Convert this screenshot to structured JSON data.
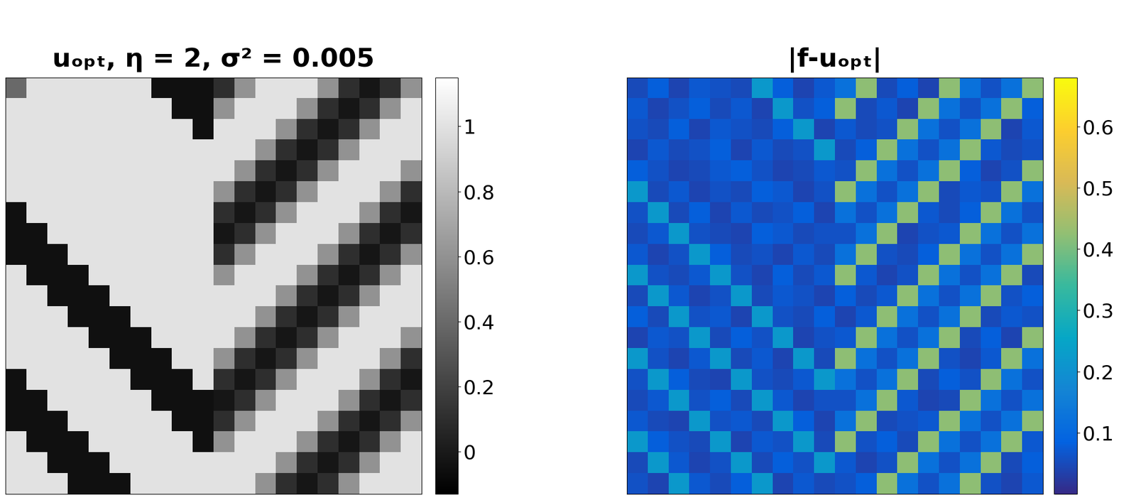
{
  "chart_data": [
    {
      "type": "heatmap",
      "title": "uₒₚₜ, η = 2, σ² = 0.005",
      "color": "gray",
      "tick_labels": false,
      "clim": [
        -0.13,
        1.15
      ],
      "cticks": [
        0,
        0.2,
        0.4,
        0.6,
        0.8,
        1
      ],
      "cells": [
        [
          0.4,
          1,
          1,
          1,
          1,
          1,
          1,
          -0.05,
          -0.05,
          -0.05,
          0.1,
          0.6,
          1,
          1,
          1,
          0.6,
          0.1,
          -0.02,
          0.1,
          0.6
        ],
        [
          1,
          1,
          1,
          1,
          1,
          1,
          1,
          1,
          -0.05,
          -0.05,
          0.6,
          1,
          1,
          1,
          0.6,
          0.1,
          -0.02,
          0.1,
          0.6,
          1
        ],
        [
          1,
          1,
          1,
          1,
          1,
          1,
          1,
          1,
          1,
          -0.05,
          1,
          1,
          1,
          0.6,
          0.1,
          -0.02,
          0.1,
          0.6,
          1,
          1
        ],
        [
          1,
          1,
          1,
          1,
          1,
          1,
          1,
          1,
          1,
          1,
          1,
          1,
          0.6,
          0.1,
          -0.02,
          0.1,
          0.6,
          1,
          1,
          1
        ],
        [
          1,
          1,
          1,
          1,
          1,
          1,
          1,
          1,
          1,
          1,
          1,
          0.6,
          0.1,
          -0.02,
          0.1,
          0.6,
          1,
          1,
          1,
          0.6
        ],
        [
          1,
          1,
          1,
          1,
          1,
          1,
          1,
          1,
          1,
          1,
          0.6,
          0.1,
          -0.02,
          0.1,
          0.6,
          1,
          1,
          1,
          0.6,
          0.1
        ],
        [
          -0.05,
          1,
          1,
          1,
          1,
          1,
          1,
          1,
          1,
          1,
          0.1,
          -0.02,
          0.1,
          0.6,
          1,
          1,
          1,
          0.6,
          0.1,
          -0.02
        ],
        [
          -0.05,
          -0.05,
          1,
          1,
          1,
          1,
          1,
          1,
          1,
          1,
          -0.02,
          0.1,
          0.6,
          1,
          1,
          1,
          0.6,
          0.1,
          -0.02,
          0.1
        ],
        [
          -0.05,
          -0.05,
          -0.05,
          1,
          1,
          1,
          1,
          1,
          1,
          1,
          0.1,
          0.6,
          1,
          1,
          1,
          0.6,
          0.1,
          -0.02,
          0.1,
          0.6
        ],
        [
          1,
          -0.05,
          -0.05,
          -0.05,
          1,
          1,
          1,
          1,
          1,
          1,
          0.6,
          1,
          1,
          1,
          0.6,
          0.1,
          -0.02,
          0.1,
          0.6,
          1
        ],
        [
          1,
          1,
          -0.05,
          -0.05,
          -0.05,
          1,
          1,
          1,
          1,
          1,
          1,
          1,
          1,
          0.6,
          0.1,
          -0.02,
          0.1,
          0.6,
          1,
          1
        ],
        [
          1,
          1,
          1,
          -0.05,
          -0.05,
          -0.05,
          1,
          1,
          1,
          1,
          1,
          1,
          0.6,
          0.1,
          -0.02,
          0.1,
          0.6,
          1,
          1,
          1
        ],
        [
          1,
          1,
          1,
          1,
          -0.05,
          -0.05,
          -0.05,
          1,
          1,
          1,
          1,
          0.6,
          0.1,
          -0.02,
          0.1,
          0.6,
          1,
          1,
          1,
          0.6
        ],
        [
          1,
          1,
          1,
          1,
          1,
          -0.05,
          -0.05,
          -0.05,
          1,
          1,
          0.6,
          0.1,
          -0.02,
          0.1,
          0.6,
          1,
          1,
          1,
          0.6,
          0.1
        ],
        [
          -0.05,
          1,
          1,
          1,
          1,
          1,
          -0.05,
          -0.05,
          -0.05,
          1,
          0.1,
          -0.02,
          0.1,
          0.6,
          1,
          1,
          1,
          0.6,
          0.1,
          -0.02
        ],
        [
          -0.05,
          -0.05,
          1,
          1,
          1,
          1,
          1,
          -0.05,
          -0.05,
          -0.05,
          -0.02,
          0.1,
          0.6,
          1,
          1,
          1,
          0.6,
          0.1,
          -0.02,
          0.1
        ],
        [
          -0.05,
          -0.05,
          -0.05,
          1,
          1,
          1,
          1,
          1,
          -0.05,
          -0.05,
          0.1,
          0.6,
          1,
          1,
          1,
          0.6,
          0.1,
          -0.02,
          0.1,
          0.6
        ],
        [
          1,
          -0.05,
          -0.05,
          -0.05,
          1,
          1,
          1,
          1,
          1,
          -0.05,
          0.6,
          1,
          1,
          1,
          0.6,
          0.1,
          -0.02,
          0.1,
          0.6,
          1
        ],
        [
          1,
          1,
          -0.05,
          -0.05,
          -0.05,
          1,
          1,
          1,
          1,
          1,
          1,
          1,
          1,
          0.6,
          0.1,
          -0.02,
          0.1,
          0.6,
          1,
          1
        ],
        [
          1,
          1,
          1,
          -0.05,
          -0.05,
          -0.05,
          1,
          1,
          1,
          1,
          1,
          1,
          0.6,
          0.1,
          -0.02,
          0.1,
          0.6,
          1,
          1,
          1
        ]
      ]
    },
    {
      "type": "heatmap",
      "title": "|f-uₒₚₜ|",
      "color": "parula",
      "tick_labels": false,
      "clim": [
        0,
        0.68
      ],
      "cticks": [
        0.1,
        0.2,
        0.3,
        0.4,
        0.5,
        0.6
      ],
      "cells": [
        [
          0.05,
          0.08,
          0.04,
          0.07,
          0.06,
          0.05,
          0.22,
          0.08,
          0.04,
          0.07,
          0.12,
          0.42,
          0.05,
          0.08,
          0.04,
          0.42,
          0.12,
          0.06,
          0.12,
          0.42
        ],
        [
          0.07,
          0.04,
          0.06,
          0.08,
          0.05,
          0.07,
          0.04,
          0.22,
          0.06,
          0.08,
          0.42,
          0.05,
          0.07,
          0.04,
          0.42,
          0.12,
          0.06,
          0.12,
          0.42,
          0.08
        ],
        [
          0.06,
          0.05,
          0.08,
          0.04,
          0.07,
          0.06,
          0.05,
          0.08,
          0.22,
          0.04,
          0.07,
          0.05,
          0.06,
          0.42,
          0.12,
          0.06,
          0.12,
          0.42,
          0.04,
          0.07
        ],
        [
          0.04,
          0.07,
          0.05,
          0.06,
          0.08,
          0.04,
          0.07,
          0.05,
          0.06,
          0.22,
          0.05,
          0.08,
          0.42,
          0.12,
          0.06,
          0.12,
          0.42,
          0.07,
          0.05,
          0.06
        ],
        [
          0.08,
          0.06,
          0.04,
          0.05,
          0.07,
          0.08,
          0.06,
          0.04,
          0.05,
          0.07,
          0.06,
          0.42,
          0.12,
          0.06,
          0.12,
          0.42,
          0.08,
          0.04,
          0.06,
          0.42
        ],
        [
          0.22,
          0.05,
          0.07,
          0.04,
          0.06,
          0.05,
          0.08,
          0.07,
          0.04,
          0.06,
          0.42,
          0.12,
          0.06,
          0.12,
          0.42,
          0.05,
          0.07,
          0.06,
          0.42,
          0.12
        ],
        [
          0.06,
          0.22,
          0.05,
          0.08,
          0.04,
          0.07,
          0.05,
          0.06,
          0.08,
          0.04,
          0.12,
          0.06,
          0.12,
          0.42,
          0.07,
          0.05,
          0.08,
          0.42,
          0.12,
          0.06
        ],
        [
          0.05,
          0.07,
          0.22,
          0.06,
          0.05,
          0.04,
          0.08,
          0.07,
          0.05,
          0.06,
          0.06,
          0.12,
          0.42,
          0.04,
          0.06,
          0.07,
          0.42,
          0.12,
          0.06,
          0.12
        ],
        [
          0.07,
          0.04,
          0.06,
          0.22,
          0.08,
          0.05,
          0.06,
          0.04,
          0.07,
          0.05,
          0.12,
          0.42,
          0.06,
          0.05,
          0.08,
          0.42,
          0.12,
          0.06,
          0.12,
          0.42
        ],
        [
          0.22,
          0.06,
          0.05,
          0.07,
          0.22,
          0.06,
          0.04,
          0.08,
          0.05,
          0.07,
          0.42,
          0.07,
          0.04,
          0.06,
          0.42,
          0.12,
          0.06,
          0.12,
          0.42,
          0.05
        ],
        [
          0.05,
          0.22,
          0.07,
          0.04,
          0.06,
          0.22,
          0.05,
          0.07,
          0.06,
          0.04,
          0.08,
          0.05,
          0.07,
          0.42,
          0.12,
          0.06,
          0.12,
          0.42,
          0.06,
          0.08
        ],
        [
          0.08,
          0.05,
          0.22,
          0.06,
          0.07,
          0.04,
          0.22,
          0.06,
          0.05,
          0.08,
          0.04,
          0.07,
          0.42,
          0.12,
          0.06,
          0.12,
          0.42,
          0.05,
          0.07,
          0.06
        ],
        [
          0.04,
          0.07,
          0.06,
          0.22,
          0.05,
          0.08,
          0.06,
          0.22,
          0.04,
          0.06,
          0.07,
          0.42,
          0.12,
          0.06,
          0.12,
          0.42,
          0.05,
          0.08,
          0.04,
          0.42
        ],
        [
          0.22,
          0.06,
          0.04,
          0.07,
          0.22,
          0.05,
          0.07,
          0.04,
          0.22,
          0.05,
          0.42,
          0.12,
          0.06,
          0.12,
          0.42,
          0.06,
          0.04,
          0.07,
          0.42,
          0.12
        ],
        [
          0.06,
          0.22,
          0.08,
          0.05,
          0.04,
          0.22,
          0.06,
          0.05,
          0.07,
          0.22,
          0.12,
          0.06,
          0.12,
          0.42,
          0.05,
          0.08,
          0.06,
          0.42,
          0.12,
          0.06
        ],
        [
          0.05,
          0.07,
          0.22,
          0.06,
          0.08,
          0.05,
          0.22,
          0.07,
          0.04,
          0.06,
          0.06,
          0.12,
          0.42,
          0.07,
          0.04,
          0.05,
          0.42,
          0.12,
          0.06,
          0.12
        ],
        [
          0.07,
          0.05,
          0.04,
          0.22,
          0.06,
          0.07,
          0.05,
          0.22,
          0.08,
          0.04,
          0.12,
          0.42,
          0.05,
          0.06,
          0.07,
          0.42,
          0.12,
          0.06,
          0.12,
          0.42
        ],
        [
          0.22,
          0.08,
          0.06,
          0.05,
          0.22,
          0.04,
          0.07,
          0.06,
          0.22,
          0.05,
          0.42,
          0.06,
          0.08,
          0.05,
          0.42,
          0.12,
          0.06,
          0.12,
          0.42,
          0.07
        ],
        [
          0.05,
          0.22,
          0.07,
          0.04,
          0.06,
          0.22,
          0.05,
          0.08,
          0.06,
          0.22,
          0.07,
          0.04,
          0.06,
          0.42,
          0.12,
          0.06,
          0.12,
          0.42,
          0.05,
          0.08
        ],
        [
          0.06,
          0.04,
          0.22,
          0.07,
          0.05,
          0.08,
          0.22,
          0.04,
          0.07,
          0.05,
          0.06,
          0.08,
          0.42,
          0.12,
          0.06,
          0.12,
          0.42,
          0.06,
          0.04,
          0.07
        ]
      ]
    }
  ]
}
